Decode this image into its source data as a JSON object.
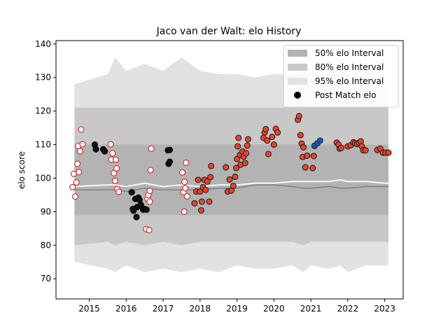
{
  "chart_data": {
    "type": "scatter",
    "title": "Jaco van der Walt: elo History",
    "xlabel": "",
    "ylabel": "elo score",
    "xlim": [
      2014.1,
      2023.5
    ],
    "ylim": [
      64,
      141
    ],
    "x_ticks": [
      2015,
      2016,
      2017,
      2018,
      2019,
      2020,
      2021,
      2022,
      2023
    ],
    "y_ticks": [
      70,
      80,
      90,
      100,
      110,
      120,
      130,
      140
    ],
    "grid": false,
    "legend_position": "top-right",
    "legend": [
      {
        "label": "50% elo Interval",
        "swatch": "#b3b3b3"
      },
      {
        "label": "80% elo Interval",
        "swatch": "#c8c8c8"
      },
      {
        "label": "95% elo Interval",
        "swatch": "#e2e2e2"
      },
      {
        "label": "Post Match elo",
        "swatch": "#000000"
      }
    ],
    "colors": {
      "band95": "#e2e2e2",
      "band80": "#c8c8c8",
      "band50": "#b3b3b3",
      "median_line": "#ffffff",
      "lower_line": "#808080",
      "marker_win": "#e8432e",
      "marker_edge": "#222222",
      "marker_hollow_edge": "#d02020",
      "marker_black": "#111111",
      "marker_blue": "#1f5b9a"
    },
    "intervals": {
      "x": [
        2014.6,
        2015.5,
        2015.7,
        2016.0,
        2016.5,
        2017.0,
        2017.5,
        2018.0,
        2018.5,
        2019.0,
        2019.5,
        2020.0,
        2020.5,
        2020.8,
        2021.0,
        2021.5,
        2021.8,
        2022.0,
        2022.5,
        2023.0,
        2023.1
      ],
      "band95_low": [
        75,
        73,
        72,
        74,
        72,
        73,
        72,
        73,
        72,
        74,
        73,
        73,
        74,
        72,
        74,
        73,
        74,
        72,
        74,
        74,
        74
      ],
      "band95_high": [
        128,
        131,
        136,
        132,
        134,
        132,
        136,
        132,
        131,
        131,
        130,
        131,
        131,
        132,
        131,
        131,
        131,
        130,
        131,
        128,
        128
      ],
      "band80_low": [
        80,
        81,
        80,
        81,
        80,
        81,
        80,
        81,
        81,
        81,
        81,
        81,
        81,
        80,
        81,
        81,
        81,
        81,
        81,
        81,
        81
      ],
      "band80_high": [
        121,
        121,
        121,
        121,
        121,
        121,
        121,
        121,
        121,
        121,
        121,
        121,
        121,
        121,
        121,
        121,
        121,
        121,
        121,
        121,
        121
      ],
      "band50_low": [
        89,
        89,
        89,
        89,
        89,
        89,
        89,
        89,
        89,
        89,
        89,
        89,
        89,
        89,
        89,
        89,
        89,
        89,
        89,
        89,
        89
      ],
      "band50_high": [
        110,
        110,
        110,
        110,
        110,
        110,
        110,
        110,
        110,
        110,
        110,
        110,
        110,
        110,
        110,
        110,
        110,
        110,
        110,
        110,
        110
      ],
      "median": [
        97.5,
        98,
        98,
        97.5,
        98.5,
        97.5,
        98,
        97.5,
        98,
        98,
        98.5,
        98.5,
        99,
        99,
        99,
        99,
        99.5,
        99,
        99,
        98.5,
        98.5
      ],
      "lower": [
        96.5,
        96.5,
        96.5,
        96,
        97,
        96.5,
        96.5,
        96.5,
        97,
        97,
        98,
        98,
        97.5,
        97,
        97,
        97.5,
        97,
        97,
        97.5,
        97.5,
        97.5
      ]
    },
    "series": [
      {
        "marker": "hollow",
        "points": [
          [
            2014.55,
            97.3
          ],
          [
            2014.58,
            101.3
          ],
          [
            2014.62,
            94.5
          ],
          [
            2014.65,
            98.7
          ],
          [
            2014.68,
            104.3
          ],
          [
            2014.7,
            109.6
          ],
          [
            2014.72,
            101.8
          ],
          [
            2014.75,
            108
          ],
          [
            2014.78,
            114.5
          ],
          [
            2014.82,
            110.1
          ],
          [
            2015.58,
            110.1
          ],
          [
            2015.6,
            105.5
          ],
          [
            2015.63,
            107.4
          ],
          [
            2015.67,
            101.5
          ],
          [
            2015.7,
            99.2
          ],
          [
            2015.72,
            105.5
          ],
          [
            2015.74,
            102.9
          ],
          [
            2015.76,
            96.7
          ],
          [
            2015.8,
            95.9
          ],
          [
            2016.54,
            84.8
          ],
          [
            2016.58,
            93.8
          ],
          [
            2016.6,
            95
          ],
          [
            2016.62,
            84.5
          ],
          [
            2016.64,
            96.2
          ],
          [
            2016.66,
            102.4
          ],
          [
            2016.68,
            108.8
          ],
          [
            2016.64,
            93
          ],
          [
            2017.52,
            101.7
          ],
          [
            2017.55,
            95.8
          ],
          [
            2017.58,
            98.9
          ],
          [
            2017.6,
            97
          ],
          [
            2017.62,
            104.6
          ],
          [
            2017.57,
            90
          ],
          [
            2017.65,
            94.6
          ]
        ]
      },
      {
        "marker": "black",
        "points": [
          [
            2015.15,
            110
          ],
          [
            2015.18,
            108.6
          ],
          [
            2015.38,
            108.6
          ],
          [
            2015.42,
            108
          ],
          [
            2016.15,
            95.8
          ],
          [
            2016.18,
            90.8
          ],
          [
            2016.2,
            90.3
          ],
          [
            2016.25,
            93.8
          ],
          [
            2016.28,
            88.4
          ],
          [
            2016.3,
            91.4
          ],
          [
            2016.33,
            94.2
          ],
          [
            2016.36,
            93.5
          ],
          [
            2016.4,
            92
          ],
          [
            2016.46,
            90.6
          ],
          [
            2016.5,
            90.8
          ],
          [
            2016.55,
            90.6
          ],
          [
            2017.13,
            108.3
          ],
          [
            2017.15,
            104.3
          ],
          [
            2017.18,
            104.9
          ],
          [
            2017.18,
            108.4
          ]
        ]
      },
      {
        "marker": "filled",
        "points": [
          [
            2017.85,
            92.5
          ],
          [
            2017.9,
            96
          ],
          [
            2017.95,
            99.5
          ],
          [
            2018.0,
            96
          ],
          [
            2018.03,
            90.4
          ],
          [
            2018.05,
            93
          ],
          [
            2018.08,
            97.3
          ],
          [
            2018.12,
            99.5
          ],
          [
            2018.15,
            96.5
          ],
          [
            2018.2,
            99
          ],
          [
            2018.25,
            93
          ],
          [
            2018.28,
            100.3
          ],
          [
            2018.3,
            103.6
          ],
          [
            2018.7,
            103.2
          ],
          [
            2018.75,
            96
          ],
          [
            2018.8,
            99.6
          ],
          [
            2018.85,
            96.3
          ],
          [
            2018.9,
            97.7
          ],
          [
            2018.95,
            100.4
          ],
          [
            2018.98,
            103
          ],
          [
            2019.0,
            105.7
          ],
          [
            2019.02,
            109.5
          ],
          [
            2019.04,
            112
          ],
          [
            2019.08,
            106.9
          ],
          [
            2019.1,
            104
          ],
          [
            2019.15,
            107.9
          ],
          [
            2019.18,
            106.4
          ],
          [
            2019.22,
            104.5
          ],
          [
            2019.25,
            107.4
          ],
          [
            2019.28,
            109.7
          ],
          [
            2019.3,
            111.6
          ],
          [
            2019.72,
            112
          ],
          [
            2019.75,
            113.6
          ],
          [
            2019.78,
            114.6
          ],
          [
            2019.82,
            111.2
          ],
          [
            2019.85,
            107.2
          ],
          [
            2019.95,
            112.3
          ],
          [
            2020.0,
            110
          ],
          [
            2020.05,
            114.7
          ],
          [
            2020.1,
            113.6
          ],
          [
            2020.65,
            117.4
          ],
          [
            2020.68,
            118.5
          ],
          [
            2020.72,
            112.8
          ],
          [
            2020.75,
            110.3
          ],
          [
            2020.78,
            106.3
          ],
          [
            2020.8,
            109.2
          ],
          [
            2020.85,
            103.2
          ],
          [
            2020.9,
            106.7
          ],
          [
            2021.05,
            103
          ],
          [
            2021.08,
            106.6
          ],
          [
            2021.1,
            109.6
          ],
          [
            2021.7,
            110.6
          ],
          [
            2021.75,
            110
          ],
          [
            2021.78,
            108.8
          ],
          [
            2021.82,
            109
          ],
          [
            2022.0,
            109.5
          ],
          [
            2022.08,
            109.8
          ],
          [
            2022.15,
            110.7
          ],
          [
            2022.2,
            110.4
          ],
          [
            2022.25,
            110.2
          ],
          [
            2022.3,
            110.5
          ],
          [
            2022.35,
            111
          ],
          [
            2022.38,
            109.5
          ],
          [
            2022.42,
            108.3
          ],
          [
            2022.48,
            108.3
          ],
          [
            2022.8,
            108.4
          ],
          [
            2022.88,
            108.8
          ],
          [
            2022.95,
            107.6
          ],
          [
            2023.02,
            107.6
          ],
          [
            2023.1,
            107.6
          ]
        ]
      },
      {
        "marker": "blue",
        "points": [
          [
            2021.1,
            109.7
          ],
          [
            2021.18,
            110.4
          ],
          [
            2021.25,
            111.2
          ]
        ]
      }
    ]
  }
}
